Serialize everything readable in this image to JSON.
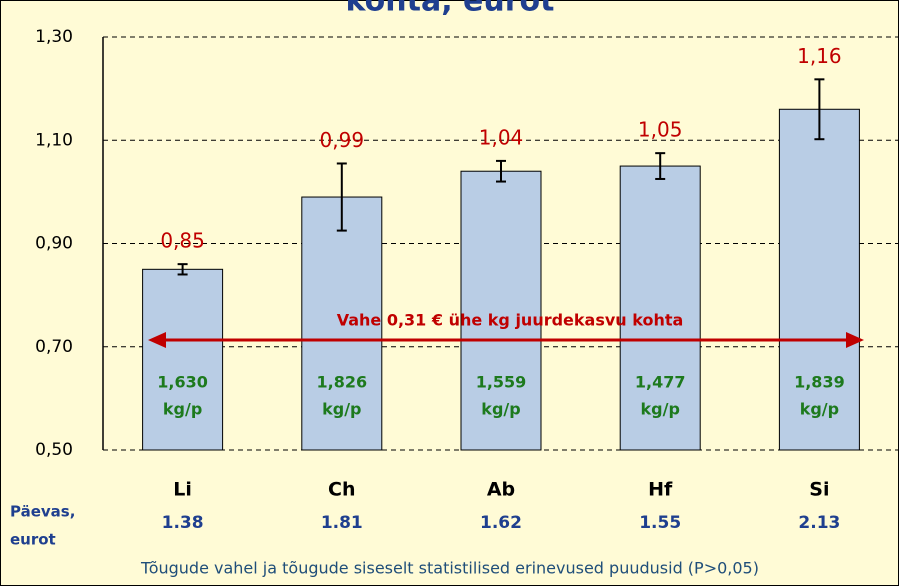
{
  "chart_data": {
    "type": "bar",
    "title": "kohta, eurot",
    "categories": [
      "Li",
      "Ch",
      "Ab",
      "Hf",
      "Si"
    ],
    "values": [
      0.85,
      0.99,
      1.04,
      1.05,
      1.16
    ],
    "value_labels": [
      "0,85",
      "0,99",
      "1,04",
      "1,05",
      "1,16"
    ],
    "errors": [
      0.01,
      0.065,
      0.02,
      0.025,
      0.058
    ],
    "color": "#b9cde5",
    "ylim": [
      0.5,
      1.3
    ],
    "yticks": [
      {
        "value": 0.5,
        "label": "0,50"
      },
      {
        "value": 0.7,
        "label": "0,70"
      },
      {
        "value": 0.9,
        "label": "0,90"
      },
      {
        "value": 1.1,
        "label": "1,10"
      },
      {
        "value": 1.3,
        "label": "1,30"
      }
    ],
    "grid": true,
    "arrow_label": "Vahe 0,31 € ühe kg juurdekasvu kohta",
    "bar_notes": [
      [
        "1,630",
        "kg/p"
      ],
      [
        "1,826",
        "kg/p"
      ],
      [
        "1,559",
        "kg/p"
      ],
      [
        "1,477",
        "kg/p"
      ],
      [
        "1,839",
        "kg/p"
      ]
    ],
    "row_label": [
      "Päevas,",
      "eurot"
    ],
    "daily": [
      1.38,
      1.81,
      1.62,
      1.55,
      2.13
    ],
    "footnote": "Tõugude vahel ja tõugude siseselt statistilised erinevused puudusid (P>0,05)"
  }
}
